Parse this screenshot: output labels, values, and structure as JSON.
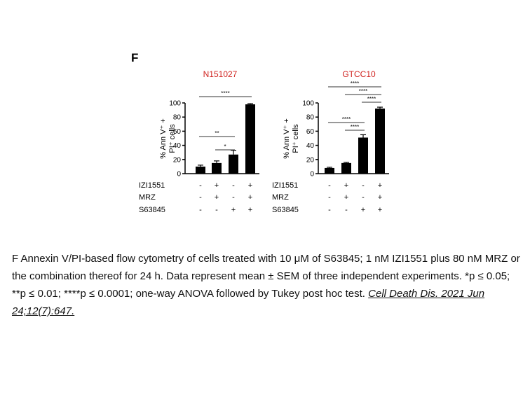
{
  "panel_label": "F",
  "colors": {
    "bar": "#000000",
    "title": "#d0231f",
    "axis": "#000000"
  },
  "condition_rows": [
    "IZI1551",
    "MRZ",
    "S63845"
  ],
  "condition_signs": [
    [
      "-",
      "+",
      "-",
      "+"
    ],
    [
      "-",
      "+",
      "-",
      "+"
    ],
    [
      "-",
      "-",
      "+",
      "+"
    ]
  ],
  "chart_data": [
    {
      "type": "bar",
      "title": "N151027",
      "ylabel": "% Ann V⁺ + PI⁺ cells",
      "ylim": [
        0,
        100
      ],
      "yticks": [
        "0",
        "20",
        "40",
        "60",
        "80",
        "100"
      ],
      "categories": [
        "-/-/-",
        "+/+/-",
        "-/-/+",
        "+/+/+"
      ],
      "values": [
        10,
        15,
        27,
        98
      ],
      "errors": [
        2,
        3,
        6,
        1
      ],
      "significance": [
        {
          "from": 0,
          "to": 3,
          "label": "****"
        },
        {
          "from": 0,
          "to": 2,
          "label": "**"
        },
        {
          "from": 1,
          "to": 2,
          "label": "*"
        }
      ]
    },
    {
      "type": "bar",
      "title": "GTCC10",
      "ylabel": "% Ann V⁺ + PI⁺ cells",
      "ylim": [
        0,
        100
      ],
      "yticks": [
        "0",
        "20",
        "40",
        "60",
        "80",
        "100"
      ],
      "categories": [
        "-/-/-",
        "+/+/-",
        "-/-/+",
        "+/+/+"
      ],
      "values": [
        8,
        15,
        51,
        92
      ],
      "errors": [
        1,
        1,
        4,
        2
      ],
      "significance": [
        {
          "from": 0,
          "to": 3,
          "label": "****"
        },
        {
          "from": 1,
          "to": 3,
          "label": "****"
        },
        {
          "from": 2,
          "to": 3,
          "label": "****"
        },
        {
          "from": 0,
          "to": 2,
          "label": "****"
        },
        {
          "from": 1,
          "to": 2,
          "label": "****"
        }
      ]
    }
  ],
  "caption": {
    "text": "F Annexin V/PI-based flow cytometry of cells treated with 10 μM of S63845; 1 nM IZI1551 plus 80 nM MRZ or the combination thereof for 24 h. Data represent mean ± SEM of three independent experiments. *p ≤ 0.05; **p ≤ 0.01; ****p ≤ 0.0001; one-way ANOVA followed by Tukey post hoc test. ",
    "citation": "Cell Death Dis. 2021 Jun 24;12(7):647."
  }
}
